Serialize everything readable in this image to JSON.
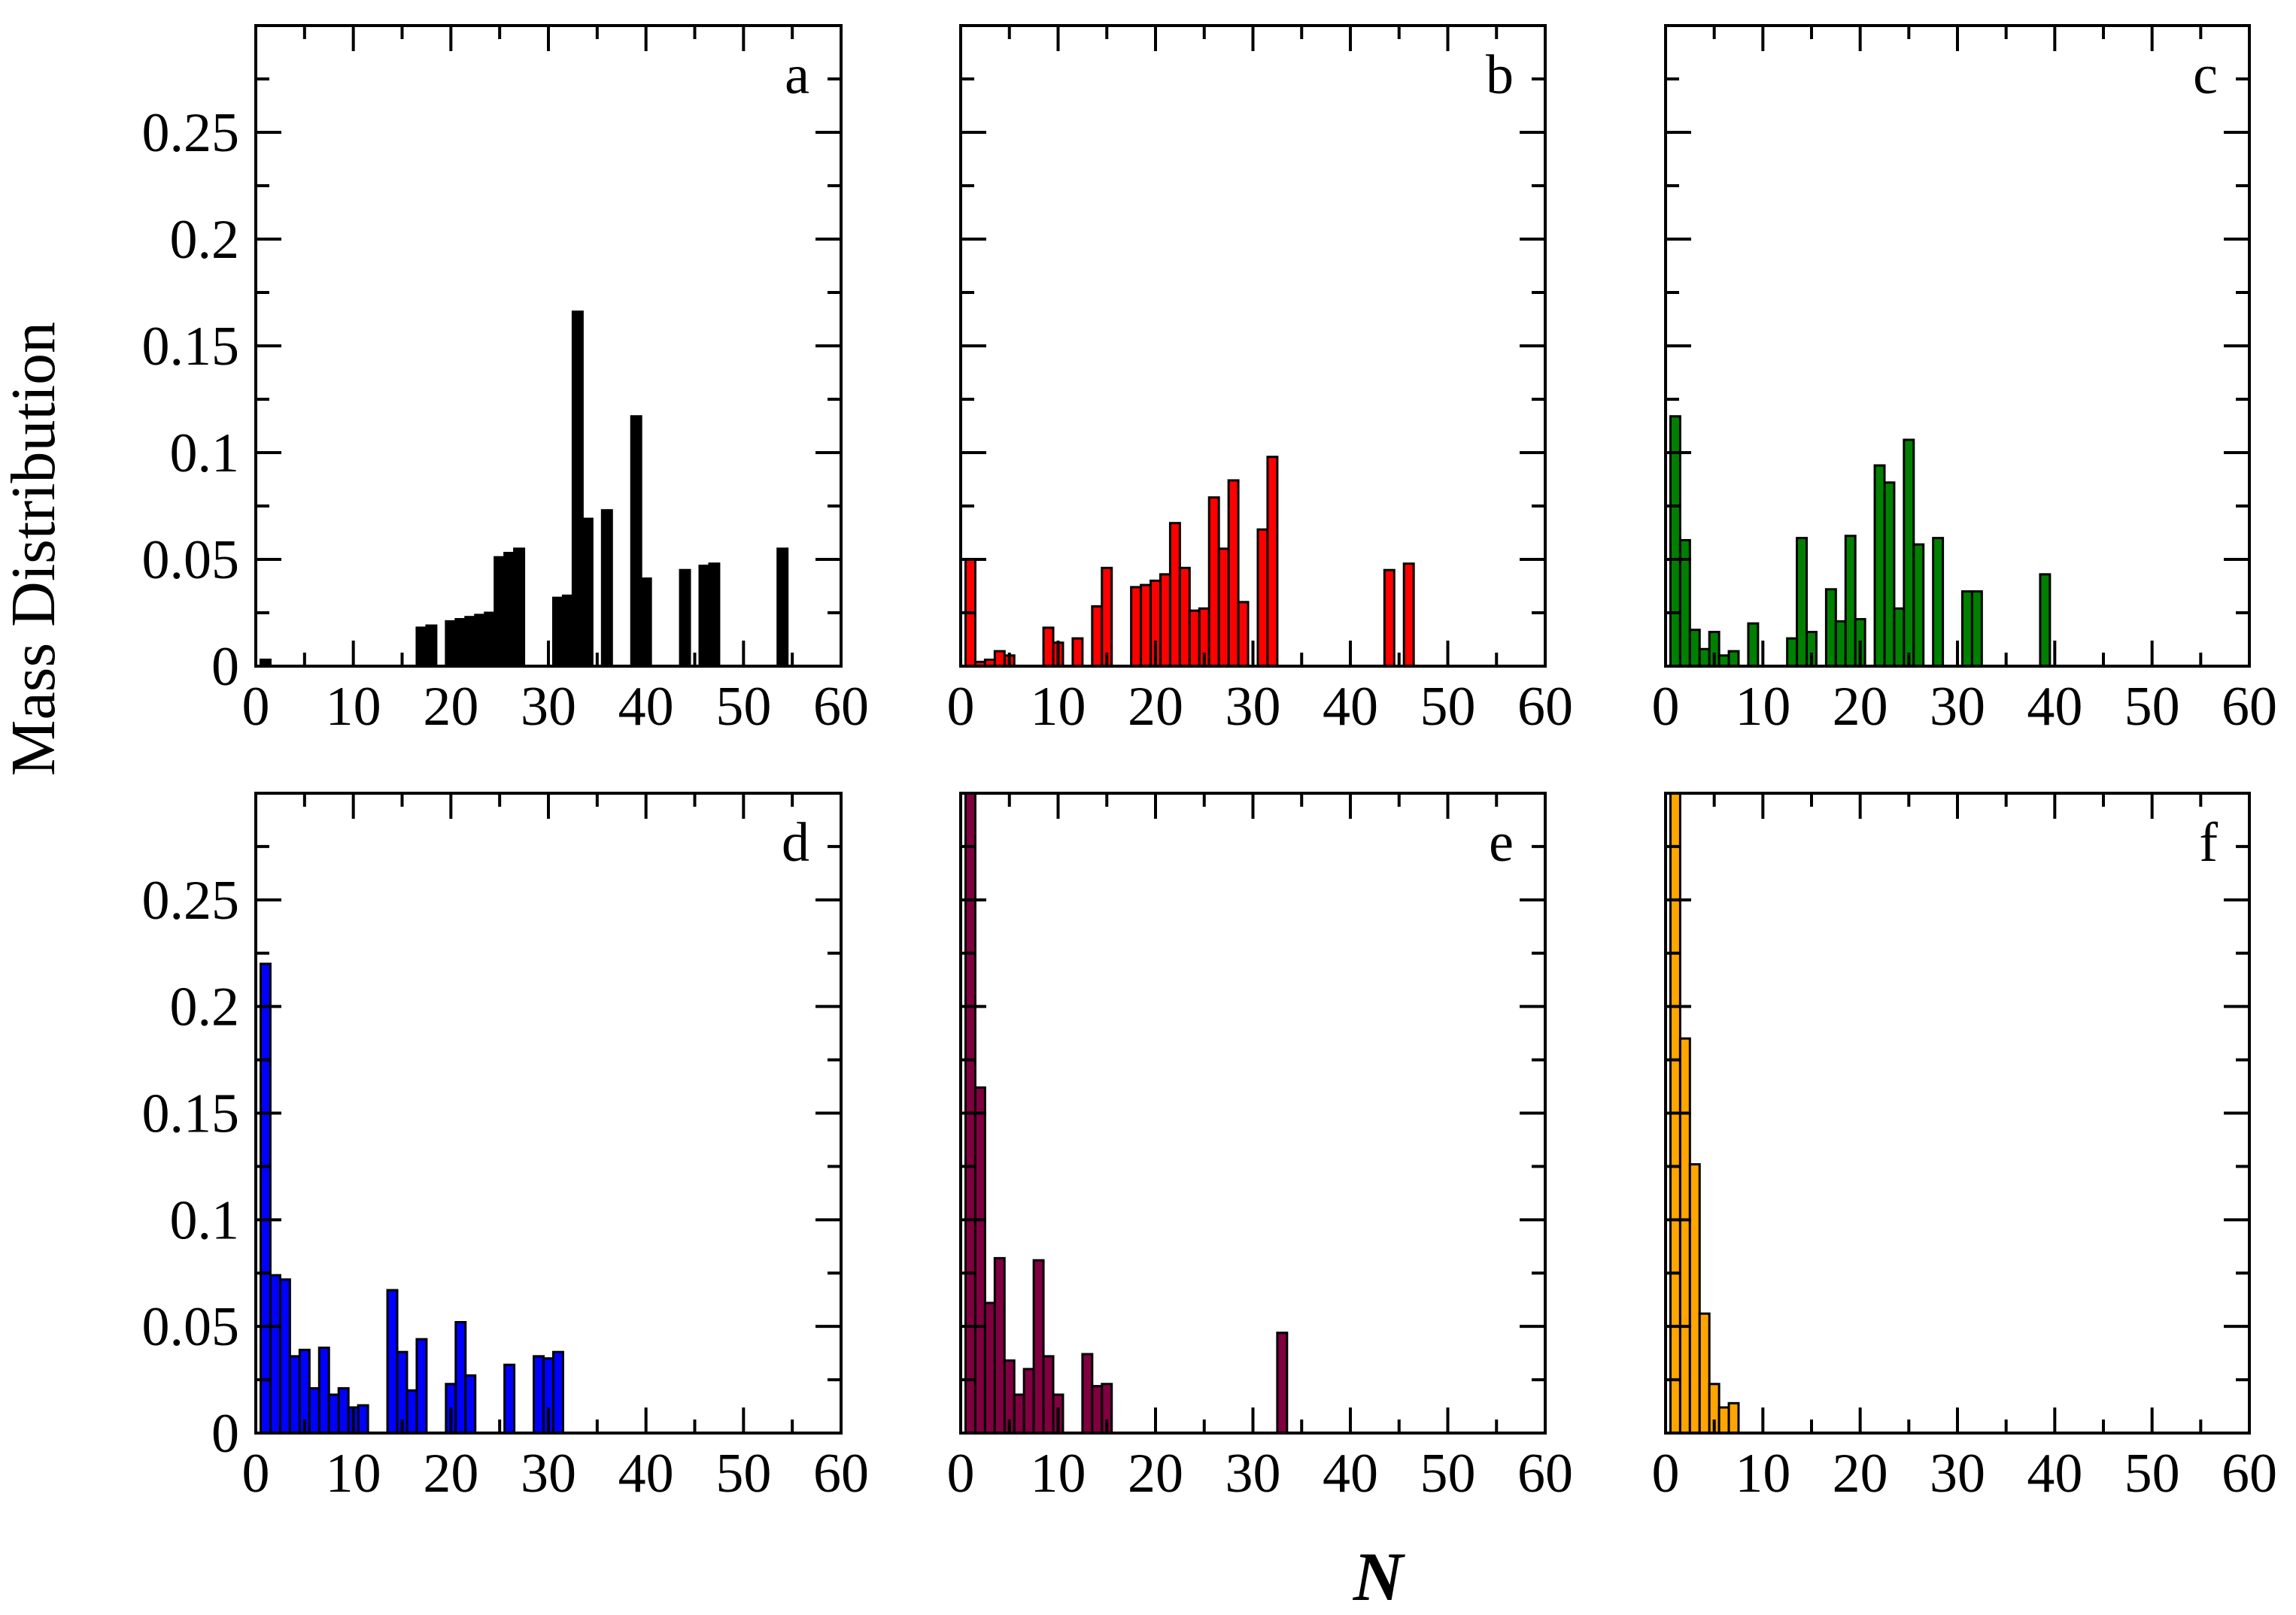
{
  "figure": {
    "ylabel": "Mass Distribution",
    "xlabel": "N"
  },
  "chart_data": [
    {
      "type": "bar",
      "label": "a",
      "color": "#000000",
      "xlim": [
        0,
        60
      ],
      "ylim": [
        0,
        0.3
      ],
      "xticks": [
        "0",
        "10",
        "20",
        "30",
        "40",
        "50",
        "60"
      ],
      "yticks": [
        "0",
        "0.05",
        "0.1",
        "0.15",
        "0.2",
        "0.25"
      ],
      "x": [
        1,
        17,
        18,
        20,
        21,
        22,
        23,
        24,
        25,
        26,
        27,
        31,
        32,
        33,
        34,
        36,
        39,
        40,
        44,
        46,
        47,
        54
      ],
      "values": [
        0.003,
        0.018,
        0.019,
        0.021,
        0.022,
        0.023,
        0.024,
        0.025,
        0.051,
        0.053,
        0.055,
        0.032,
        0.033,
        0.166,
        0.069,
        0.073,
        0.117,
        0.041,
        0.045,
        0.047,
        0.048,
        0.055
      ]
    },
    {
      "type": "bar",
      "label": "b",
      "color": "#ff0000",
      "xlim": [
        0,
        60
      ],
      "ylim": [
        0,
        0.3
      ],
      "xticks": [
        "0",
        "10",
        "20",
        "30",
        "40",
        "50",
        "60"
      ],
      "yticks": [],
      "x": [
        1,
        2,
        3,
        4,
        5,
        9,
        10,
        12,
        14,
        15,
        18,
        19,
        20,
        21,
        22,
        23,
        24,
        25,
        26,
        27,
        28,
        29,
        31,
        32,
        44,
        46
      ],
      "values": [
        0.05,
        0.002,
        0.003,
        0.007,
        0.005,
        0.018,
        0.011,
        0.013,
        0.028,
        0.046,
        0.037,
        0.038,
        0.04,
        0.043,
        0.067,
        0.046,
        0.026,
        0.027,
        0.079,
        0.055,
        0.087,
        0.03,
        0.064,
        0.098,
        0.045,
        0.048
      ]
    },
    {
      "type": "bar",
      "label": "c",
      "color": "#008000",
      "xlim": [
        0,
        60
      ],
      "ylim": [
        0,
        0.3
      ],
      "xticks": [
        "0",
        "10",
        "20",
        "30",
        "40",
        "50",
        "60"
      ],
      "yticks": [],
      "x": [
        1,
        2,
        3,
        4,
        5,
        6,
        7,
        9,
        13,
        14,
        15,
        17,
        18,
        19,
        20,
        22,
        23,
        24,
        25,
        26,
        28,
        31,
        32,
        39
      ],
      "values": [
        0.117,
        0.059,
        0.017,
        0.008,
        0.016,
        0.005,
        0.007,
        0.02,
        0.013,
        0.06,
        0.016,
        0.036,
        0.021,
        0.061,
        0.022,
        0.094,
        0.086,
        0.027,
        0.106,
        0.057,
        0.06,
        0.035,
        0.035,
        0.043
      ]
    },
    {
      "type": "bar",
      "label": "d",
      "color": "#0000ff",
      "xlim": [
        0,
        60
      ],
      "ylim": [
        0,
        0.3
      ],
      "xticks": [
        "0",
        "10",
        "20",
        "30",
        "40",
        "50",
        "60"
      ],
      "yticks": [
        "0",
        "0.05",
        "0.1",
        "0.15",
        "0.2",
        "0.25"
      ],
      "x": [
        1,
        2,
        3,
        4,
        5,
        6,
        7,
        8,
        9,
        10,
        11,
        14,
        15,
        16,
        17,
        18,
        20,
        21,
        22,
        26,
        29,
        30,
        31
      ],
      "values": [
        0.22,
        0.074,
        0.072,
        0.036,
        0.039,
        0.021,
        0.04,
        0.018,
        0.021,
        0.012,
        0.013,
        0.067,
        0.038,
        0.02,
        0.044,
        0.0,
        0.023,
        0.052,
        0.027,
        0.032,
        0.036,
        0.035,
        0.038
      ]
    },
    {
      "type": "bar",
      "label": "e",
      "color": "#800040",
      "xlim": [
        0,
        60
      ],
      "ylim": [
        0,
        0.3
      ],
      "xticks": [
        "0",
        "10",
        "20",
        "30",
        "40",
        "50",
        "60"
      ],
      "yticks": [],
      "x": [
        1,
        2,
        3,
        4,
        5,
        6,
        7,
        8,
        9,
        10,
        13,
        14,
        15,
        33
      ],
      "values": [
        0.3,
        0.162,
        0.061,
        0.082,
        0.034,
        0.018,
        0.03,
        0.081,
        0.036,
        0.018,
        0.037,
        0.022,
        0.023,
        0.047
      ]
    },
    {
      "type": "bar",
      "label": "f",
      "color": "#ffa500",
      "xlim": [
        0,
        60
      ],
      "ylim": [
        0,
        0.3
      ],
      "xticks": [
        "0",
        "10",
        "20",
        "30",
        "40",
        "50",
        "60"
      ],
      "yticks": [],
      "x": [
        1,
        2,
        3,
        4,
        5,
        6,
        7
      ],
      "values": [
        0.3,
        0.185,
        0.126,
        0.056,
        0.023,
        0.012,
        0.014
      ]
    }
  ]
}
